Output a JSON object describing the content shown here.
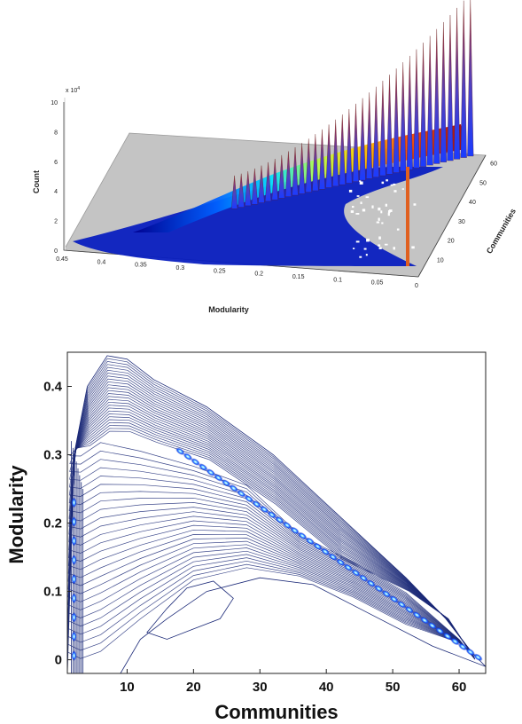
{
  "chart_data": [
    {
      "type": "surface3d",
      "title": "",
      "xlabel": "Modularity",
      "ylabel": "Communities",
      "zlabel": "Count",
      "z_exponent_label": "x 10",
      "z_exponent_sup": "4",
      "x_ticks": [
        "0.45",
        "0.4",
        "0.35",
        "0.3",
        "0.25",
        "0.2",
        "0.15",
        "0.1",
        "0.05",
        "0"
      ],
      "y_ticks": [
        "10",
        "20",
        "30",
        "40",
        "50",
        "60"
      ],
      "z_ticks": [
        "0",
        "2",
        "4",
        "6",
        "8",
        "10"
      ],
      "xlim": [
        0.45,
        0
      ],
      "ylim": [
        1,
        64
      ],
      "zlim": [
        0,
        10
      ],
      "colormap": "jet",
      "floor_color": "#c0c0c0",
      "ridge": [
        {
          "communities": 8,
          "modularity": 0.4,
          "count": 0.3
        },
        {
          "communities": 15,
          "modularity": 0.33,
          "count": 0.8
        },
        {
          "communities": 22,
          "modularity": 0.29,
          "count": 1.8
        },
        {
          "communities": 30,
          "modularity": 0.25,
          "count": 3.0
        },
        {
          "communities": 38,
          "modularity": 0.2,
          "count": 4.2
        },
        {
          "communities": 45,
          "modularity": 0.15,
          "count": 5.5
        },
        {
          "communities": 52,
          "modularity": 0.1,
          "count": 7.0
        },
        {
          "communities": 58,
          "modularity": 0.06,
          "count": 8.8
        },
        {
          "communities": 63,
          "modularity": 0.02,
          "count": 10.0
        }
      ]
    },
    {
      "type": "contour",
      "title": "",
      "xlabel": "Communities",
      "ylabel": "Modularity",
      "x_ticks": [
        "10",
        "20",
        "30",
        "40",
        "50",
        "60"
      ],
      "y_ticks": [
        "0",
        "0.1",
        "0.2",
        "0.3",
        "0.4"
      ],
      "xlim": [
        1,
        64
      ],
      "ylim": [
        -0.02,
        0.45
      ],
      "line_color": "#1c2a78",
      "outer_boundary": [
        [
          1,
          -0.02
        ],
        [
          2,
          0.3
        ],
        [
          4,
          0.4
        ],
        [
          7,
          0.445
        ],
        [
          10,
          0.44
        ],
        [
          14,
          0.41
        ],
        [
          22,
          0.37
        ],
        [
          32,
          0.3
        ],
        [
          42,
          0.21
        ],
        [
          52,
          0.12
        ],
        [
          58,
          0.06
        ],
        [
          62,
          0.01
        ],
        [
          64,
          -0.01
        ],
        [
          56,
          0.02
        ],
        [
          46,
          0.07
        ],
        [
          38,
          0.11
        ],
        [
          30,
          0.12
        ],
        [
          22,
          0.1
        ],
        [
          16,
          0.06
        ],
        [
          12,
          0.03
        ],
        [
          9,
          -0.02
        ]
      ],
      "ridge": [
        [
          3,
          0.31
        ],
        [
          8,
          0.33
        ],
        [
          14,
          0.315
        ],
        [
          20,
          0.29
        ],
        [
          26,
          0.26
        ],
        [
          32,
          0.225
        ],
        [
          38,
          0.185
        ],
        [
          44,
          0.145
        ],
        [
          50,
          0.1
        ],
        [
          56,
          0.06
        ],
        [
          60,
          0.03
        ],
        [
          63,
          0.0
        ]
      ],
      "inner_island": [
        [
          13,
          0.04
        ],
        [
          16,
          0.075
        ],
        [
          19,
          0.105
        ],
        [
          23,
          0.115
        ],
        [
          26,
          0.09
        ],
        [
          24,
          0.06
        ],
        [
          20,
          0.045
        ],
        [
          16,
          0.03
        ]
      ]
    }
  ]
}
